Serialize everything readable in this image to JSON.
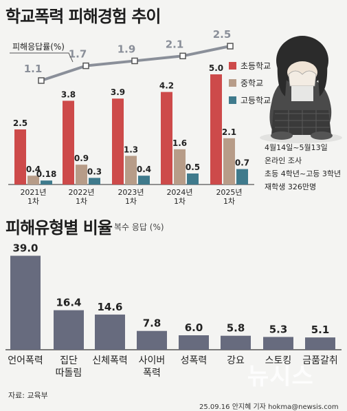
{
  "chart_data": [
    {
      "type": "bar",
      "title": "학교폭력 피해경험 추이",
      "categories": [
        "2021년\n1차",
        "2022년\n1차",
        "2023년\n1차",
        "2024년\n1차",
        "2025년\n1차"
      ],
      "series": [
        {
          "name": "초등학교",
          "color": "#cd4a4a",
          "values": [
            2.5,
            3.8,
            3.9,
            4.2,
            5.0
          ]
        },
        {
          "name": "중학교",
          "color": "#b79c88",
          "values": [
            0.4,
            0.9,
            1.3,
            1.6,
            2.1
          ]
        },
        {
          "name": "고등학교",
          "color": "#3f7a8c",
          "values": [
            0.18,
            0.3,
            0.4,
            0.5,
            0.7
          ]
        }
      ],
      "value_labels": [
        [
          "2.5",
          "3.8",
          "3.9",
          "4.2",
          "5.0"
        ],
        [
          "0.4",
          "0.9",
          "1.3",
          "1.6",
          "2.1"
        ],
        [
          "0.18",
          "0.3",
          "0.4",
          "0.5",
          "0.7"
        ]
      ],
      "line": {
        "name": "피해응답률(%)",
        "values": [
          1.1,
          1.7,
          1.9,
          2.1,
          2.5
        ],
        "labels": [
          "1.1",
          "1.7",
          "1.9",
          "2.1",
          "2.5"
        ]
      },
      "legend": "right"
    },
    {
      "type": "bar",
      "title": "피해유형별 비율",
      "subtitle": "복수 응답 (%)",
      "categories": [
        "언어폭력",
        "집단\n따돌림",
        "신체폭력",
        "사이버\n폭력",
        "성폭력",
        "강요",
        "스토킹",
        "금품갈취"
      ],
      "values": [
        39.0,
        16.4,
        14.6,
        7.8,
        6.0,
        5.8,
        5.3,
        5.1
      ],
      "value_labels": [
        "39.0",
        "16.4",
        "14.6",
        "7.8",
        "6.0",
        "5.8",
        "5.3",
        "5.1"
      ],
      "color": "#676b7e"
    }
  ],
  "info": [
    "4월14일~5월13일",
    "온라인 조사",
    "초등 4학년~고등 3학년",
    "재학생 326만명"
  ],
  "source": "자료: 교육부",
  "credit": "25.09.16 안지혜 기자 hokma@newsis.com",
  "watermark": "뉴시스"
}
